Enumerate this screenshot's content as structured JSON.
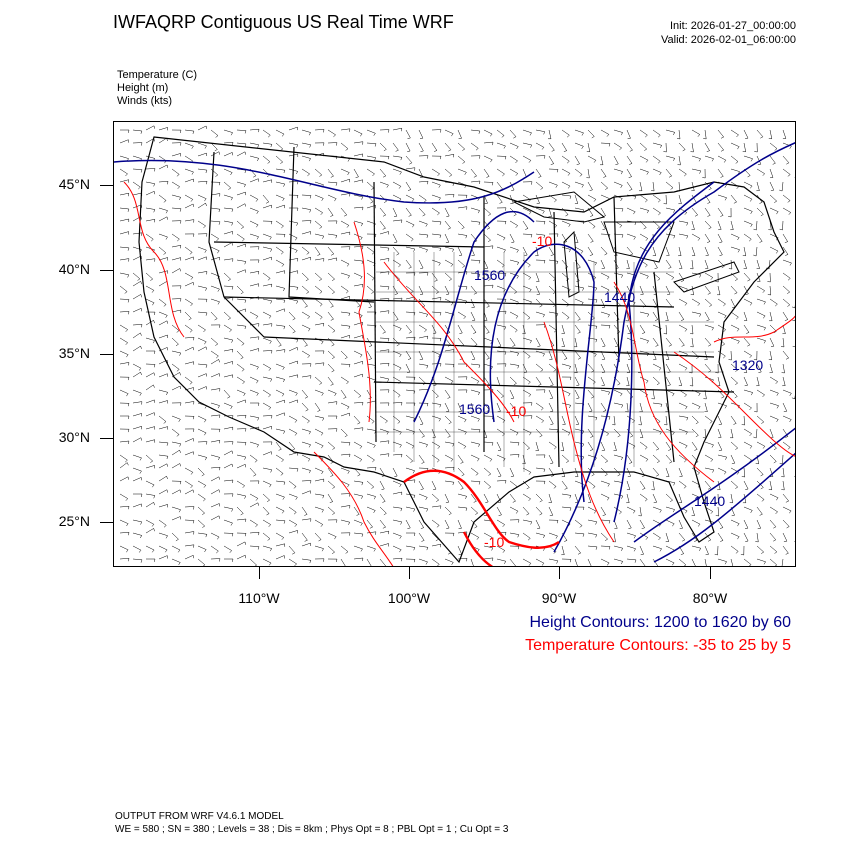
{
  "header": {
    "title": "IWFAQRP Contiguous US Real Time WRF",
    "init": "Init: 2026-01-27_00:00:00",
    "valid": "Valid: 2026-02-01_06:00:00"
  },
  "fields": [
    {
      "label": "Temperature   (C)"
    },
    {
      "label": "Height   (m)"
    },
    {
      "label": "Winds   (kts)"
    }
  ],
  "axes": {
    "lat_labels": [
      "45°N",
      "40°N",
      "35°N",
      "30°N",
      "25°N"
    ],
    "lon_labels": [
      "110°W",
      "100°W",
      "90°W",
      "80°W"
    ]
  },
  "contour_labels": {
    "height": [
      "1560",
      "1440",
      "1560",
      "1320",
      "1440"
    ],
    "temperature": [
      "-10",
      "-10",
      "-10"
    ]
  },
  "legend": {
    "height": "Height Contours: 1200 to 1620 by 60",
    "temperature": "Temperature Contours: -35 to 25 by 5"
  },
  "colors": {
    "height": "#00008b",
    "temperature": "#ff0000",
    "boundaries": "#000000",
    "barbs": "#000000"
  },
  "footer": {
    "line1": "OUTPUT FROM WRF V4.6.1 MODEL",
    "line2": "WE = 580 ; SN = 380 ; Levels = 38 ; Dis = 8km ; Phys Opt = 8 ; PBL Opt = 1 ; Cu Opt = 3"
  }
}
